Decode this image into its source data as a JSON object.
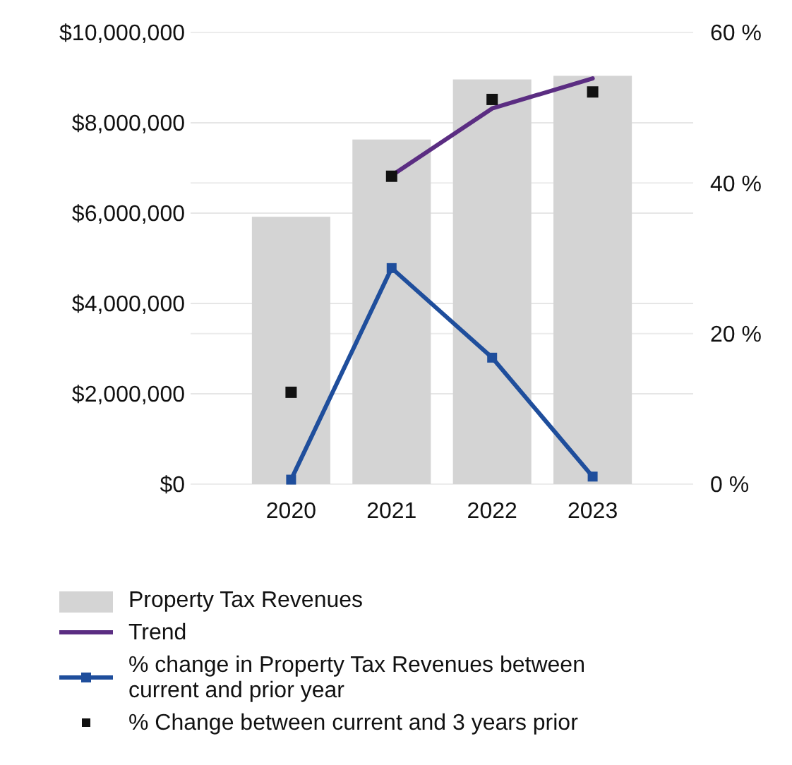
{
  "chart_data": {
    "type": "bar",
    "categories": [
      "2020",
      "2021",
      "2022",
      "2023"
    ],
    "series": [
      {
        "name": "Property Tax Revenues",
        "color": "#d4d4d4",
        "values": [
          5920000,
          7630000,
          8960000,
          9040000
        ]
      },
      {
        "name": "Trend",
        "type": "line",
        "axis": "y2",
        "color": "#5b2d82",
        "marker": "none",
        "values": [
          null,
          41.0,
          49.9,
          53.9
        ]
      },
      {
        "name": "% change in Property Tax Revenues between current and prior year",
        "type": "line",
        "axis": "y2",
        "color": "#1f4e9c",
        "marker": "square",
        "values": [
          0.6,
          28.7,
          16.8,
          1.0
        ]
      },
      {
        "name": "% Change between current and 3 years prior",
        "type": "scatter",
        "axis": "y2",
        "color": "#111111",
        "marker": "square",
        "values": [
          12.2,
          40.9,
          51.1,
          52.1
        ]
      }
    ],
    "ylim": [
      0,
      10000000
    ],
    "yticks": [
      {
        "value": 0,
        "label": "$0"
      },
      {
        "value": 2000000,
        "label": "$2,000,000"
      },
      {
        "value": 4000000,
        "label": "$4,000,000"
      },
      {
        "value": 6000000,
        "label": "$6,000,000"
      },
      {
        "value": 8000000,
        "label": "$8,000,000"
      },
      {
        "value": 10000000,
        "label": "$10,000,000"
      }
    ],
    "y2lim": [
      0,
      60
    ],
    "y2ticks": [
      {
        "value": 0,
        "label": "0 %"
      },
      {
        "value": 20,
        "label": "20 %"
      },
      {
        "value": 40,
        "label": "40 %"
      },
      {
        "value": 60,
        "label": "60 %"
      }
    ],
    "grid": "y",
    "legend": "bottom"
  }
}
